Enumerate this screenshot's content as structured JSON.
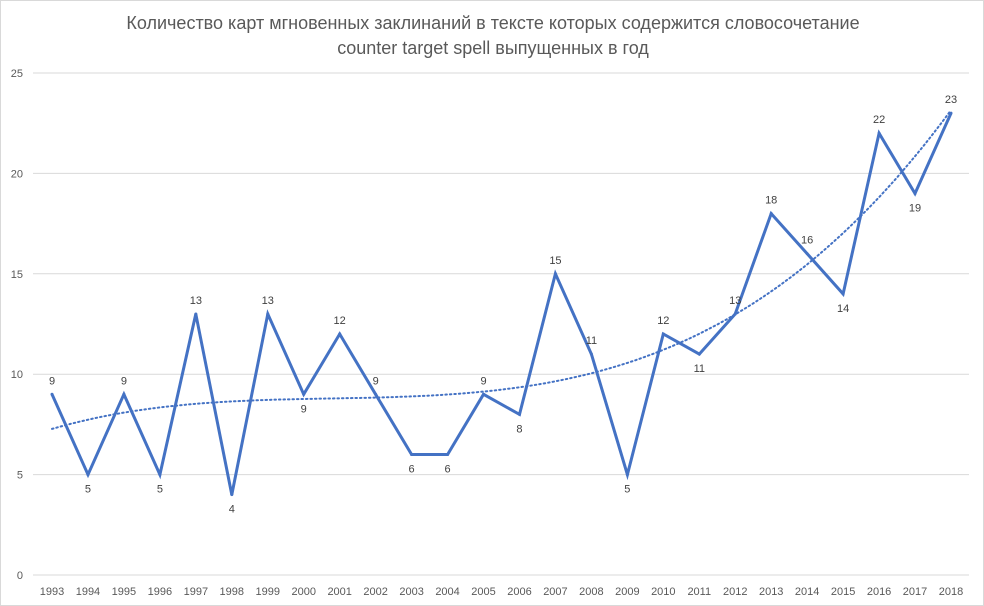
{
  "chart_data": {
    "type": "line",
    "title": "Количество карт мгновенных заклинаний в тексте которых содержится словосочетание counter target spell выпущенных в год",
    "categories": [
      "1993",
      "1994",
      "1995",
      "1996",
      "1997",
      "1998",
      "1999",
      "2000",
      "2001",
      "2002",
      "2003",
      "2004",
      "2005",
      "2006",
      "2007",
      "2008",
      "2009",
      "2010",
      "2011",
      "2012",
      "2013",
      "2014",
      "2015",
      "2016",
      "2017",
      "2018"
    ],
    "series": [
      {
        "values": [
          9,
          5,
          9,
          5,
          13,
          4,
          13,
          9,
          12,
          9,
          6,
          6,
          9,
          8,
          15,
          11,
          5,
          12,
          11,
          13,
          18,
          16,
          14,
          22,
          19,
          23
        ]
      }
    ],
    "trendline": {
      "type": "polynomial",
      "style": "dotted"
    },
    "xlabel": "",
    "ylabel": "",
    "ylim": [
      0,
      25
    ],
    "yticks": [
      0,
      5,
      10,
      15,
      20,
      25
    ],
    "grid": true,
    "legend": "none",
    "data_labels": true,
    "colors": {
      "line": "#4472c4",
      "grid": "#d9d9d9",
      "text": "#595959",
      "label": "#404040"
    }
  }
}
